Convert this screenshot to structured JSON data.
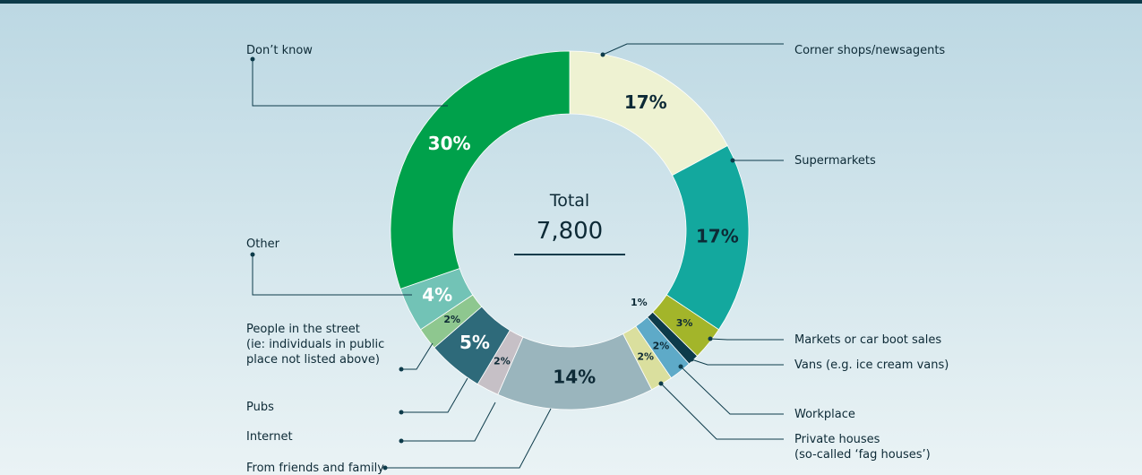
{
  "chart_data": {
    "type": "donut",
    "center_title": "Total",
    "center_value": "7,800",
    "categories": [
      "Corner shops/newsagents",
      "Supermarkets",
      "Markets or car boot sales",
      "Vans (e.g. ice cream vans)",
      "Workplace",
      "Private houses\n(so-called ‘fag houses’)",
      "From friends and family",
      "Internet",
      "Pubs",
      "People in the street\n(ie: individuals in public\nplace not listed above)",
      "Other",
      "Don’t know"
    ],
    "values": [
      17,
      17,
      3,
      1,
      2,
      2,
      14,
      2,
      5,
      2,
      4,
      30
    ],
    "value_labels": [
      "17%",
      "17%",
      "3%",
      "1%",
      "2%",
      "2%",
      "14%",
      "2%",
      "5%",
      "2%",
      "4%",
      "30%"
    ],
    "colors": [
      "#eef2d2",
      "#13a89e",
      "#a3b52a",
      "#0d3b4a",
      "#5eaac8",
      "#dadf9e",
      "#9ab5bd",
      "#c6c0c6",
      "#2e6a7a",
      "#8ec78f",
      "#72c3b6",
      "#00a14b"
    ]
  }
}
